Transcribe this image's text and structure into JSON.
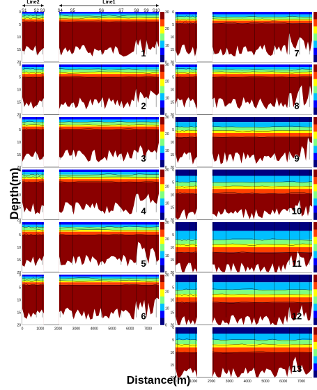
{
  "figure": {
    "ylabel": "Depth(m)",
    "xlabel": "Distance(m)"
  },
  "chart_data": {
    "type": "heatmap",
    "sections": [
      {
        "name": "Line2",
        "stations": [
          "S1",
          "S2",
          "S3"
        ]
      },
      {
        "name": "Line1",
        "stations": [
          "S4",
          "S5",
          "S6",
          "S7",
          "S8",
          "S9",
          "S10"
        ]
      }
    ],
    "x_ticks": [
      "0",
      "1000",
      "2000",
      "3000",
      "4000",
      "5000",
      "6000",
      "7000"
    ],
    "x_range": [
      0,
      7600
    ],
    "depth_ticks": [
      "0",
      "5",
      "10",
      "15",
      "20"
    ],
    "depth_range": [
      0,
      20
    ],
    "colorbar": {
      "ticks": [
        "0",
        "10",
        "20",
        "30"
      ],
      "range": [
        0,
        30
      ],
      "colors": [
        "#00007f",
        "#0000ff",
        "#00bfff",
        "#7fff7f",
        "#ffff00",
        "#ff4000",
        "#8b0000"
      ]
    },
    "panels": [
      {
        "label": "1",
        "surface_depth": 1.5,
        "upper_gradient_m": 2.5,
        "deep_layer_m": 6
      },
      {
        "label": "2",
        "surface_depth": 2.0,
        "upper_gradient_m": 3.0,
        "deep_layer_m": 6
      },
      {
        "label": "3",
        "surface_depth": 2.0,
        "upper_gradient_m": 3.0,
        "deep_layer_m": 6
      },
      {
        "label": "4",
        "surface_depth": 2.0,
        "upper_gradient_m": 3.0,
        "deep_layer_m": 6
      },
      {
        "label": "5",
        "surface_depth": 2.0,
        "upper_gradient_m": 3.0,
        "deep_layer_m": 6
      },
      {
        "label": "6",
        "surface_depth": 1.5,
        "upper_gradient_m": 2.5,
        "deep_layer_m": 6
      },
      {
        "label": "7",
        "surface_depth": 2.0,
        "upper_gradient_m": 2.5,
        "deep_layer_m": 6
      },
      {
        "label": "8",
        "surface_depth": 2.0,
        "upper_gradient_m": 3.0,
        "deep_layer_m": 6
      },
      {
        "label": "9",
        "surface_depth": 4.0,
        "upper_gradient_m": 4.0,
        "deep_layer_m": 7
      },
      {
        "label": "10",
        "surface_depth": 5.0,
        "upper_gradient_m": 4.5,
        "deep_layer_m": 8
      },
      {
        "label": "11",
        "surface_depth": 7.0,
        "upper_gradient_m": 5.0,
        "deep_layer_m": 9
      },
      {
        "label": "12",
        "surface_depth": 6.0,
        "upper_gradient_m": 5.0,
        "deep_layer_m": 9
      },
      {
        "label": "13",
        "surface_depth": 5.0,
        "upper_gradient_m": 5.0,
        "deep_layer_m": 9
      }
    ]
  }
}
